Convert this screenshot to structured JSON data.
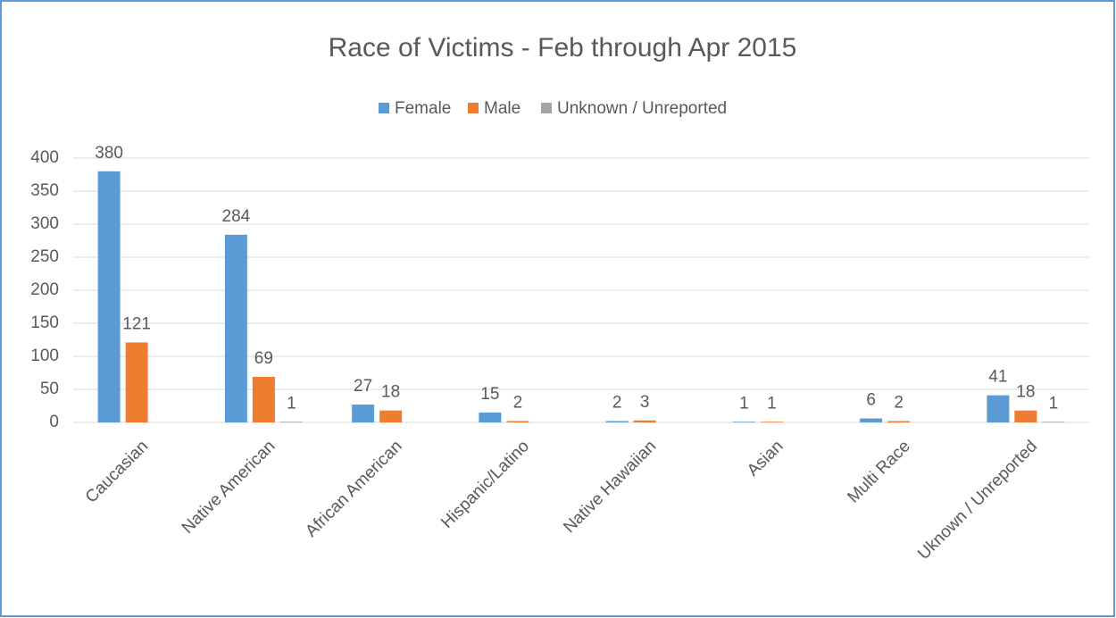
{
  "chart_data": {
    "type": "bar",
    "title": "Race of Victims - Feb through Apr 2015",
    "categories": [
      "Caucasian",
      "Native American",
      "African American",
      "Hispanic/Latino",
      "Native Hawaiian",
      "Asian",
      "Multi Race",
      "Uknown / Unreported"
    ],
    "series": [
      {
        "name": "Female",
        "color": "#5b9bd5",
        "values": [
          380,
          284,
          27,
          15,
          2,
          1,
          6,
          41
        ]
      },
      {
        "name": "Male",
        "color": "#ed7d31",
        "values": [
          121,
          69,
          18,
          2,
          3,
          1,
          2,
          18
        ]
      },
      {
        "name": "Unknown / Unreported",
        "color": "#a5a5a5",
        "values": [
          null,
          1,
          null,
          null,
          null,
          null,
          null,
          1
        ]
      }
    ],
    "ylim": [
      0,
      400
    ],
    "yticks": [
      0,
      50,
      100,
      150,
      200,
      250,
      300,
      350,
      400
    ],
    "grid": true,
    "legend": "top"
  }
}
